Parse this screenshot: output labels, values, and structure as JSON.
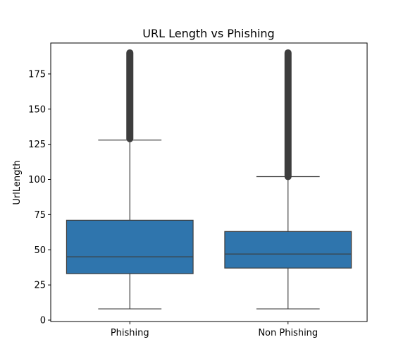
{
  "chart_data": {
    "type": "box",
    "title": "URL Length vs Phishing",
    "xlabel": "",
    "ylabel": "UrlLength",
    "ylim": [
      -1,
      197
    ],
    "yticks": [
      0,
      25,
      50,
      75,
      100,
      125,
      150,
      175
    ],
    "grid": false,
    "box_color": "#2f75ad",
    "line_color": "#3d3d3d",
    "categories": [
      "Phishing",
      "Non Phishing"
    ],
    "boxes": [
      {
        "category": "Phishing",
        "whisker_low": 8,
        "q1": 33,
        "median": 45,
        "q3": 71,
        "whisker_high": 128,
        "outlier_range": [
          129,
          190
        ]
      },
      {
        "category": "Non Phishing",
        "whisker_low": 8,
        "q1": 37,
        "median": 47,
        "q3": 63,
        "whisker_high": 102,
        "outlier_range": [
          102,
          190
        ]
      }
    ]
  }
}
